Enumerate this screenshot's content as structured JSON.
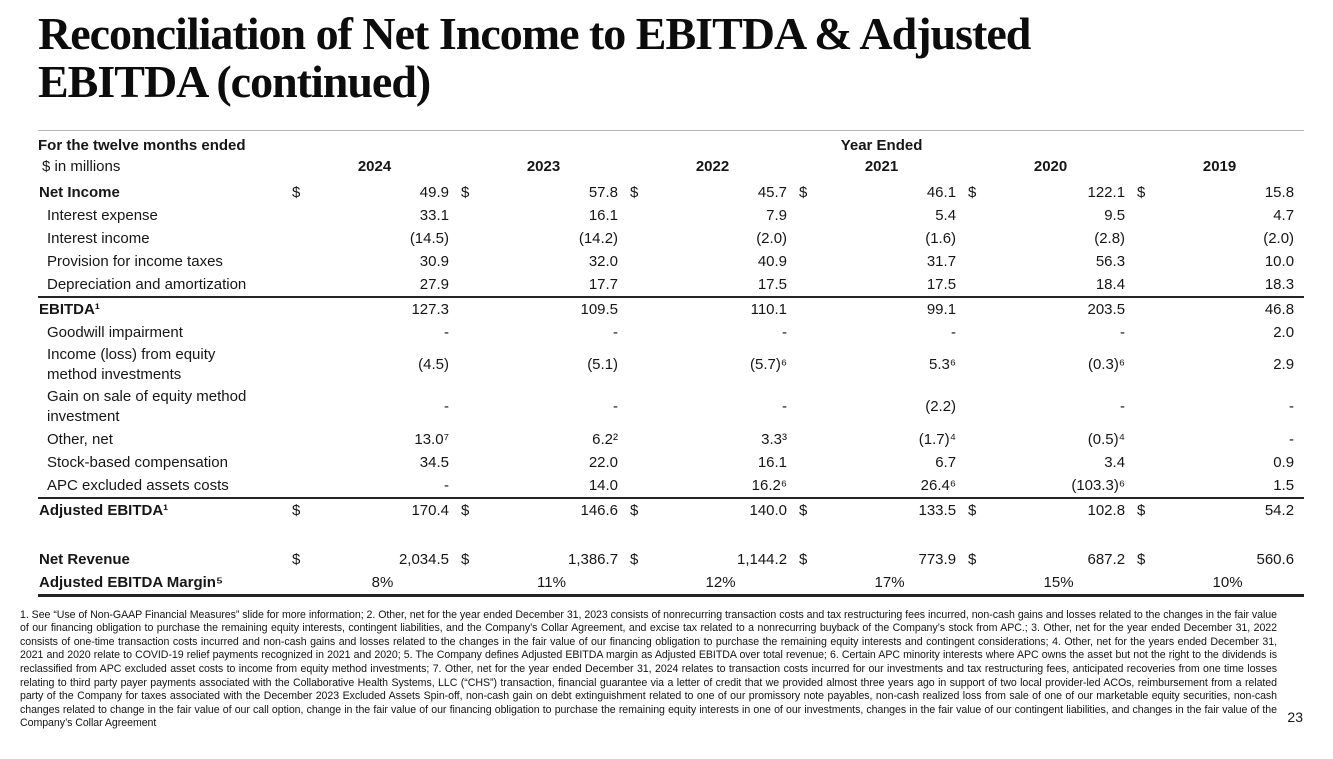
{
  "page": {
    "background": "#ffffff",
    "page_number": "23"
  },
  "title": {
    "line1": "Reconciliation of Net Income to EBITDA & Adjusted",
    "line2": "EBITDA (continued)"
  },
  "table": {
    "header": {
      "period_label": "For the twelve months ended",
      "units_label": "$ in millions",
      "year_ended_label": "Year Ended",
      "years": [
        "2024",
        "2023",
        "2022",
        "2021",
        "2020",
        "2019"
      ]
    },
    "rows": [
      {
        "label": "Net Income",
        "bold": true,
        "dollar": true,
        "values": [
          "49.9",
          "57.8",
          "45.7",
          "46.1",
          "122.1",
          "15.8"
        ]
      },
      {
        "label": "Interest expense",
        "indent": true,
        "values": [
          "33.1",
          "16.1",
          "7.9",
          "5.4",
          "9.5",
          "4.7"
        ]
      },
      {
        "label": "Interest income",
        "indent": true,
        "values": [
          "(14.5)",
          "(14.2)",
          "(2.0)",
          "(1.6)",
          "(2.8)",
          "(2.0)"
        ]
      },
      {
        "label": "Provision for income taxes",
        "indent": true,
        "values": [
          "30.9",
          "32.0",
          "40.9",
          "31.7",
          "56.3",
          "10.0"
        ]
      },
      {
        "label": "Depreciation and amortization",
        "indent": true,
        "values": [
          "27.9",
          "17.7",
          "17.5",
          "17.5",
          "18.4",
          "18.3"
        ]
      },
      {
        "label": "EBITDA¹",
        "bold": true,
        "rule_top": true,
        "values": [
          "127.3",
          "109.5",
          "110.1",
          "99.1",
          "203.5",
          "46.8"
        ]
      },
      {
        "label": "Goodwill impairment",
        "indent": true,
        "values": [
          "-",
          "-",
          "-",
          "-",
          "-",
          "2.0"
        ]
      },
      {
        "label": "Income (loss) from equity method investments",
        "indent": true,
        "narrow": true,
        "values": [
          "(4.5)",
          "(5.1)",
          "(5.7)⁶",
          "5.3⁶",
          "(0.3)⁶",
          "2.9"
        ]
      },
      {
        "label": "Gain on sale of equity method investment",
        "indent": true,
        "narrow": true,
        "values": [
          "-",
          "-",
          "-",
          "(2.2)",
          "-",
          "-"
        ]
      },
      {
        "label": "Other, net",
        "indent": true,
        "values": [
          "13.0⁷",
          "6.2²",
          "3.3³",
          "(1.7)⁴",
          "(0.5)⁴",
          "-"
        ]
      },
      {
        "label": "Stock-based compensation",
        "indent": true,
        "values": [
          "34.5",
          "22.0",
          "16.1",
          "6.7",
          "3.4",
          "0.9"
        ]
      },
      {
        "label": "APC excluded assets costs",
        "indent": true,
        "values": [
          "-",
          "14.0",
          "16.2⁶",
          "26.4⁶",
          "(103.3)⁶",
          "1.5"
        ]
      },
      {
        "label": "Adjusted EBITDA¹",
        "bold": true,
        "dollar": true,
        "rule_top": true,
        "values": [
          "170.4",
          "146.6",
          "140.0",
          "133.5",
          "102.8",
          "54.2"
        ]
      },
      {
        "spacer": true
      },
      {
        "label": "Net Revenue",
        "bold": true,
        "dollar": true,
        "values": [
          "2,034.5",
          "1,386.7",
          "1,144.2",
          "773.9",
          "687.2",
          "560.6"
        ]
      },
      {
        "label": "Adjusted EBITDA Margin⁵",
        "bold": true,
        "percent": true,
        "rule_bottom": true,
        "values": [
          "8%",
          "11%",
          "12%",
          "17%",
          "15%",
          "10%"
        ]
      }
    ]
  },
  "footnotes": "1. See “Use of Non-GAAP Financial Measures” slide for more information; 2. Other, net for the year ended December 31, 2023 consists of nonrecurring transaction costs and tax restructuring fees incurred,  non-cash gains and losses related to the changes in the fair value of our financing obligation to purchase the remaining equity interests, contingent liabilities,  and the Company’s Collar Agreement, and excise tax related to a nonrecurring buyback of the Company’s stock from APC.; 3. Other, net for the year ended December 31, 2022 consists of one-time transaction costs incurred and non-cash gains and losses related to the changes in the fair value of our financing obligation to purchase the remaining equity interests and contingent considerations;  4. Other, net for the years ended December 31, 2021 and 2020 relate to COVID-19 relief payments recognized in 2021 and 2020; 5. The Company defines Adjusted EBITDA margin as Adjusted EBITDA over total revenue; 6. Certain APC minority interests where APC owns the asset but not the right to the dividends is reclassified from APC excluded asset costs to income from equity method investments; 7. Other, net for the year ended December 31, 2024 relates to transaction costs incurred for our investments and tax restructuring fees, anticipated recoveries from one time losses relating to third party payer payments associated with the Collaborative Health Systems, LLC (“CHS”) transaction, financial guarantee via a letter of credit that we provided almost three years ago in support of two local provider-led ACOs, reimbursement from a related party of the Company for taxes associated with the December 2023 Excluded Assets Spin-off, non-cash gain on debt extinguishment related to one of our promissory note payables, non-cash realized loss from sale of one of our marketable equity securities, non-cash changes related to change in the fair value of our call option, change in the fair value of our financing obligation to purchase the remaining equity interests in one of our investments, changes in the fair value of our contingent liabilities, and changes in the fair value of the Company’s Collar Agreement"
}
